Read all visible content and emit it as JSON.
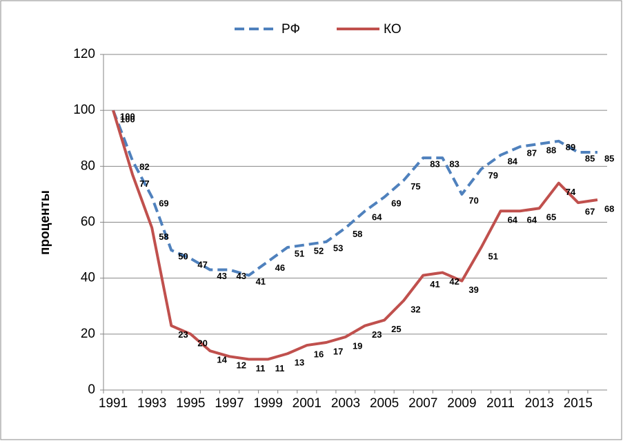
{
  "chart_data": {
    "type": "line",
    "y_label": "проценты",
    "categories": [
      "1991",
      null,
      "1993",
      null,
      "1995",
      null,
      "1997",
      null,
      "1999",
      null,
      "2001",
      null,
      "2003",
      null,
      "2005",
      null,
      "2007",
      null,
      "2009",
      null,
      "2011",
      null,
      "2013",
      null,
      "2015",
      null
    ],
    "series": [
      {
        "name": "РФ",
        "color": "#4f81bd",
        "dash": true,
        "values": [
          100,
          82,
          69,
          50,
          47,
          43,
          43,
          41,
          46,
          51,
          52,
          53,
          58,
          64,
          69,
          75,
          83,
          83,
          70,
          79,
          84,
          87,
          88,
          89,
          85,
          85
        ]
      },
      {
        "name": "КО",
        "color": "#c0504d",
        "dash": false,
        "values": [
          100,
          77,
          58,
          23,
          20,
          14,
          12,
          11,
          11,
          13,
          16,
          17,
          19,
          23,
          25,
          32,
          41,
          42,
          39,
          51,
          64,
          64,
          65,
          74,
          67,
          68
        ]
      }
    ],
    "ylim": [
      0,
      120
    ],
    "yticks": [
      0,
      20,
      40,
      60,
      80,
      100,
      120
    ],
    "grid": true,
    "legend": "top"
  }
}
